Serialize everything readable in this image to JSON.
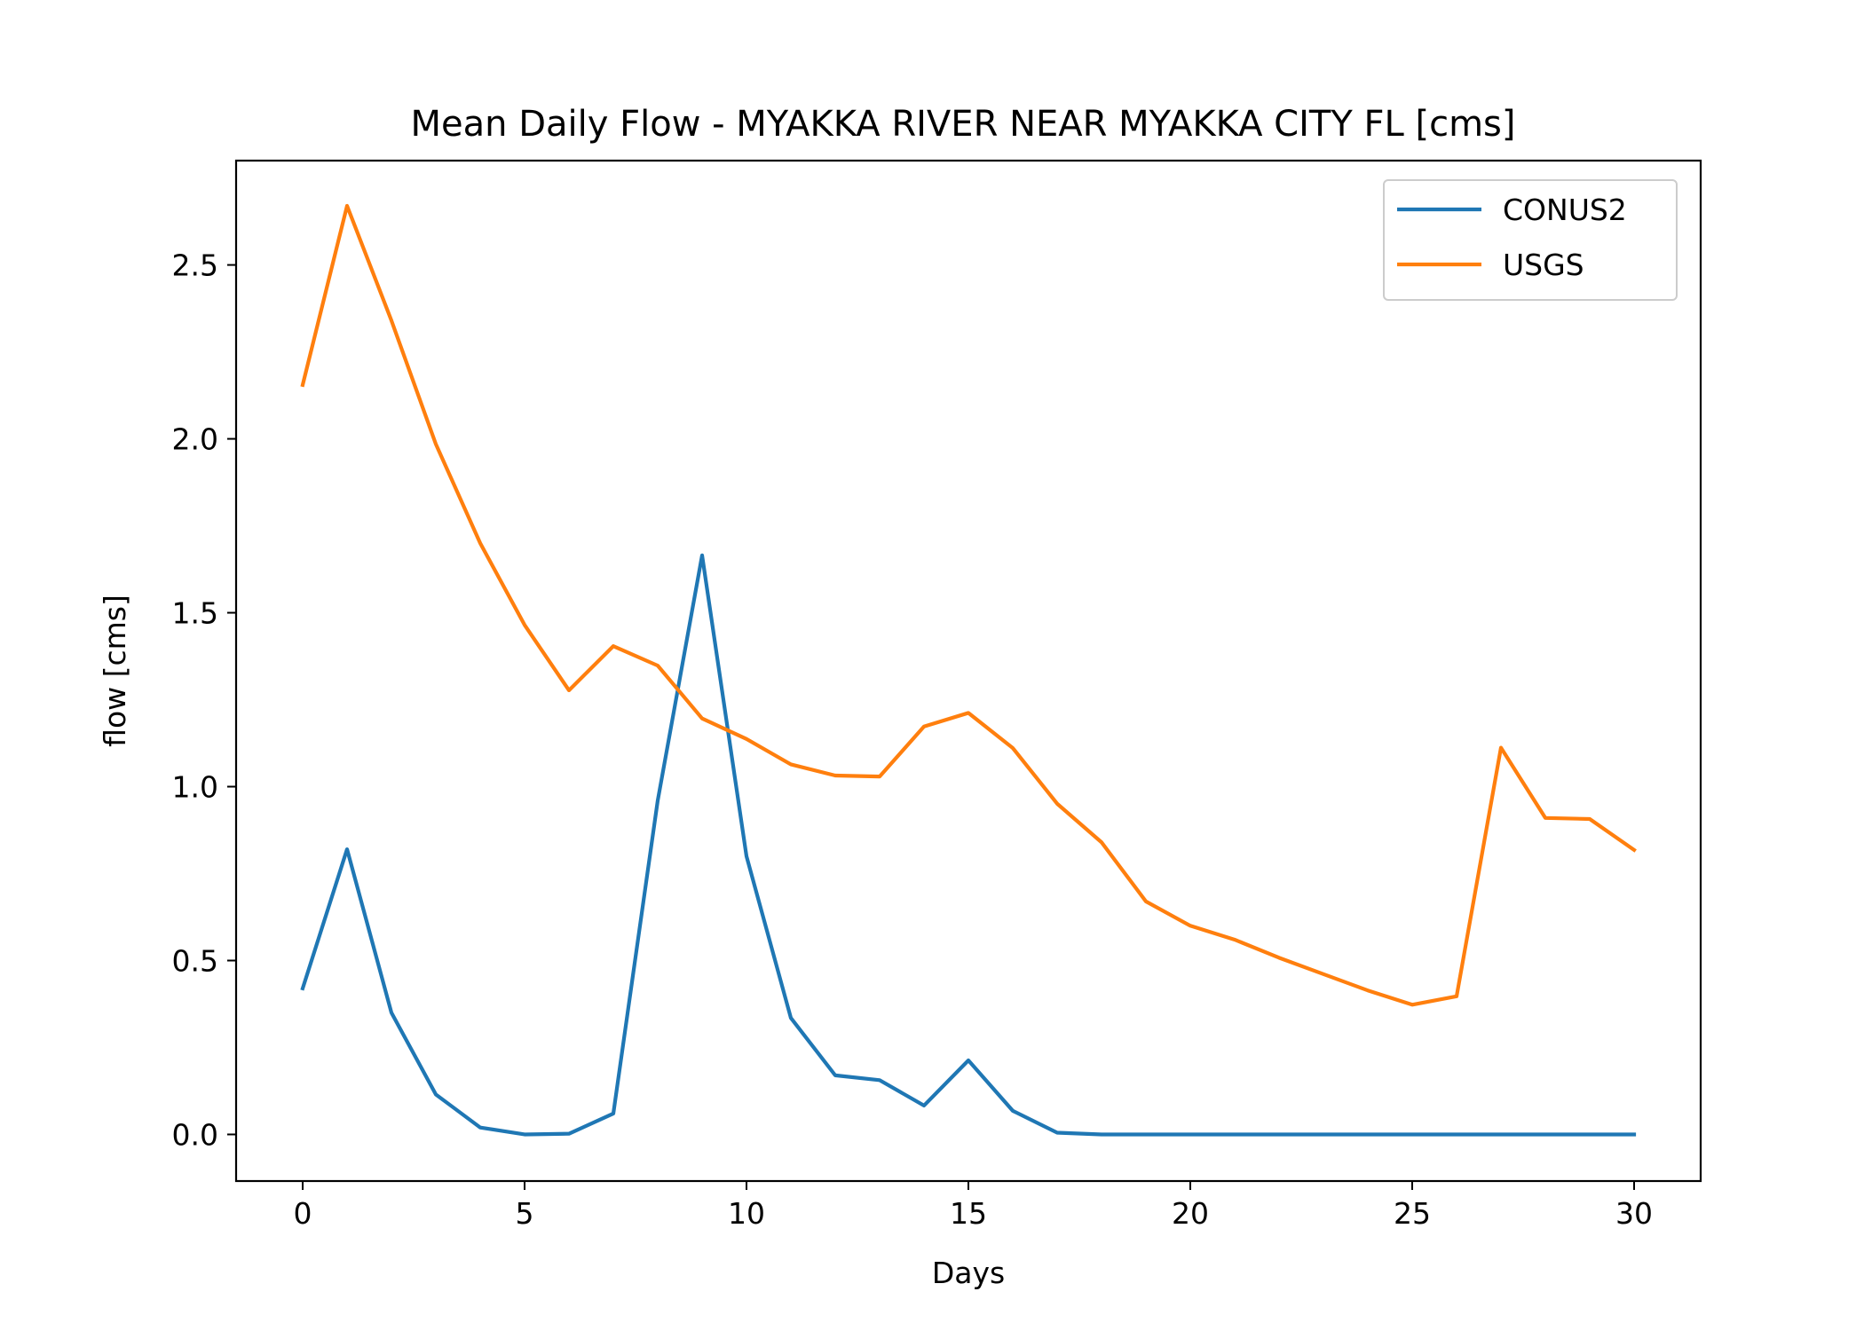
{
  "chart_data": {
    "type": "line",
    "title": "Mean Daily Flow - MYAKKA RIVER NEAR MYAKKA CITY FL [cms]",
    "xlabel": "Days",
    "ylabel": "flow [cms]",
    "xlim": [
      -1.5,
      31.5
    ],
    "ylim": [
      -0.134,
      2.8
    ],
    "xticks": [
      0,
      5,
      10,
      15,
      20,
      25,
      30
    ],
    "yticks": [
      0.0,
      0.5,
      1.0,
      1.5,
      2.0,
      2.5
    ],
    "xtick_labels": [
      "0",
      "5",
      "10",
      "15",
      "20",
      "25",
      "30"
    ],
    "ytick_labels": [
      "0.0",
      "0.5",
      "1.0",
      "1.5",
      "2.0",
      "2.5"
    ],
    "legend_position": "upper-right",
    "grid": false,
    "x": [
      0,
      1,
      2,
      3,
      4,
      5,
      6,
      7,
      8,
      9,
      10,
      11,
      12,
      13,
      14,
      15,
      16,
      17,
      18,
      19,
      20,
      21,
      22,
      23,
      24,
      25,
      26,
      27,
      28,
      29,
      30
    ],
    "series": [
      {
        "name": "CONUS2",
        "color": "#1f77b4",
        "values": [
          0.42,
          0.82,
          0.35,
          0.115,
          0.02,
          0.0,
          0.002,
          0.06,
          0.96,
          1.665,
          0.8,
          0.335,
          0.17,
          0.156,
          0.083,
          0.213,
          0.068,
          0.005,
          0.0,
          0.0,
          0.0,
          0.0,
          0.0,
          0.0,
          0.0,
          0.0,
          0.0,
          0.0,
          0.0,
          0.0,
          0.0
        ]
      },
      {
        "name": "USGS",
        "color": "#ff7f0e",
        "values": [
          2.155,
          2.67,
          2.34,
          1.985,
          1.7,
          1.465,
          1.277,
          1.404,
          1.348,
          1.196,
          1.137,
          1.064,
          1.032,
          1.029,
          1.173,
          1.212,
          1.111,
          0.951,
          0.84,
          0.67,
          0.6,
          0.56,
          0.508,
          0.461,
          0.414,
          0.373,
          0.397,
          1.112,
          0.91,
          0.907,
          0.818
        ]
      }
    ]
  }
}
